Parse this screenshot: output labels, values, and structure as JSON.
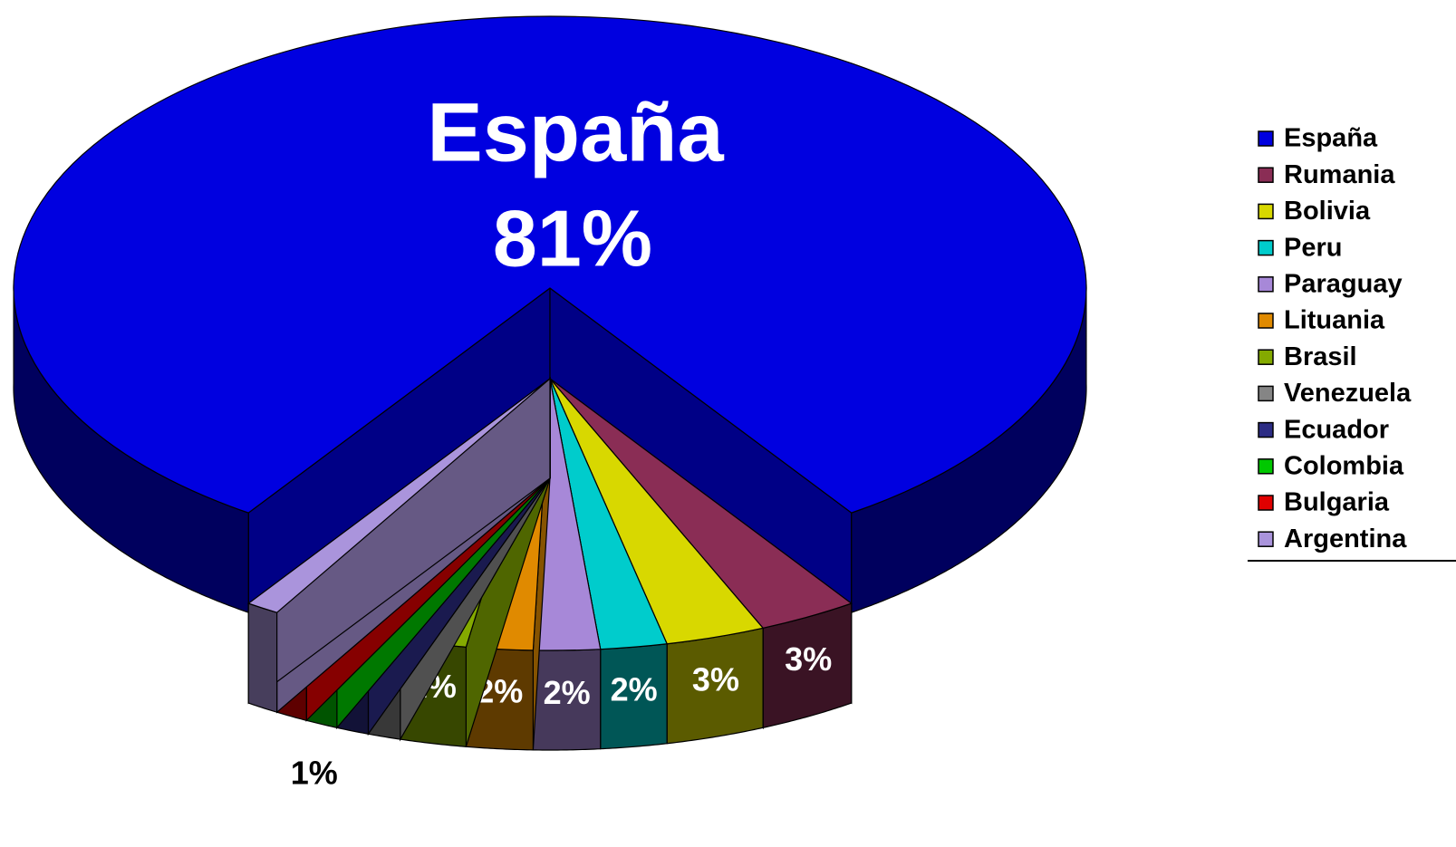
{
  "chart_data": {
    "type": "pie",
    "categories": [
      "España",
      "Rumania",
      "Bolivia",
      "Peru",
      "Paraguay",
      "Lituania",
      "Brasil",
      "Venezuela",
      "Ecuador",
      "Colombia",
      "Bulgaria",
      "Argentina"
    ],
    "values": [
      81,
      3,
      3,
      2,
      2,
      2,
      2,
      1,
      1,
      1,
      1,
      1
    ],
    "value_labels": [
      "81%",
      "3%",
      "3%",
      "2%",
      "2%",
      "2%",
      "2%",
      null,
      null,
      null,
      "1%",
      null
    ],
    "colors": [
      "#0000e0",
      "#8a2d55",
      "#d8d800",
      "#00cccc",
      "#a788d8",
      "#e08a00",
      "#84aa00",
      "#858585",
      "#2c2c84",
      "#00c800",
      "#e00000",
      "#aa94dc"
    ],
    "legend": "right"
  }
}
